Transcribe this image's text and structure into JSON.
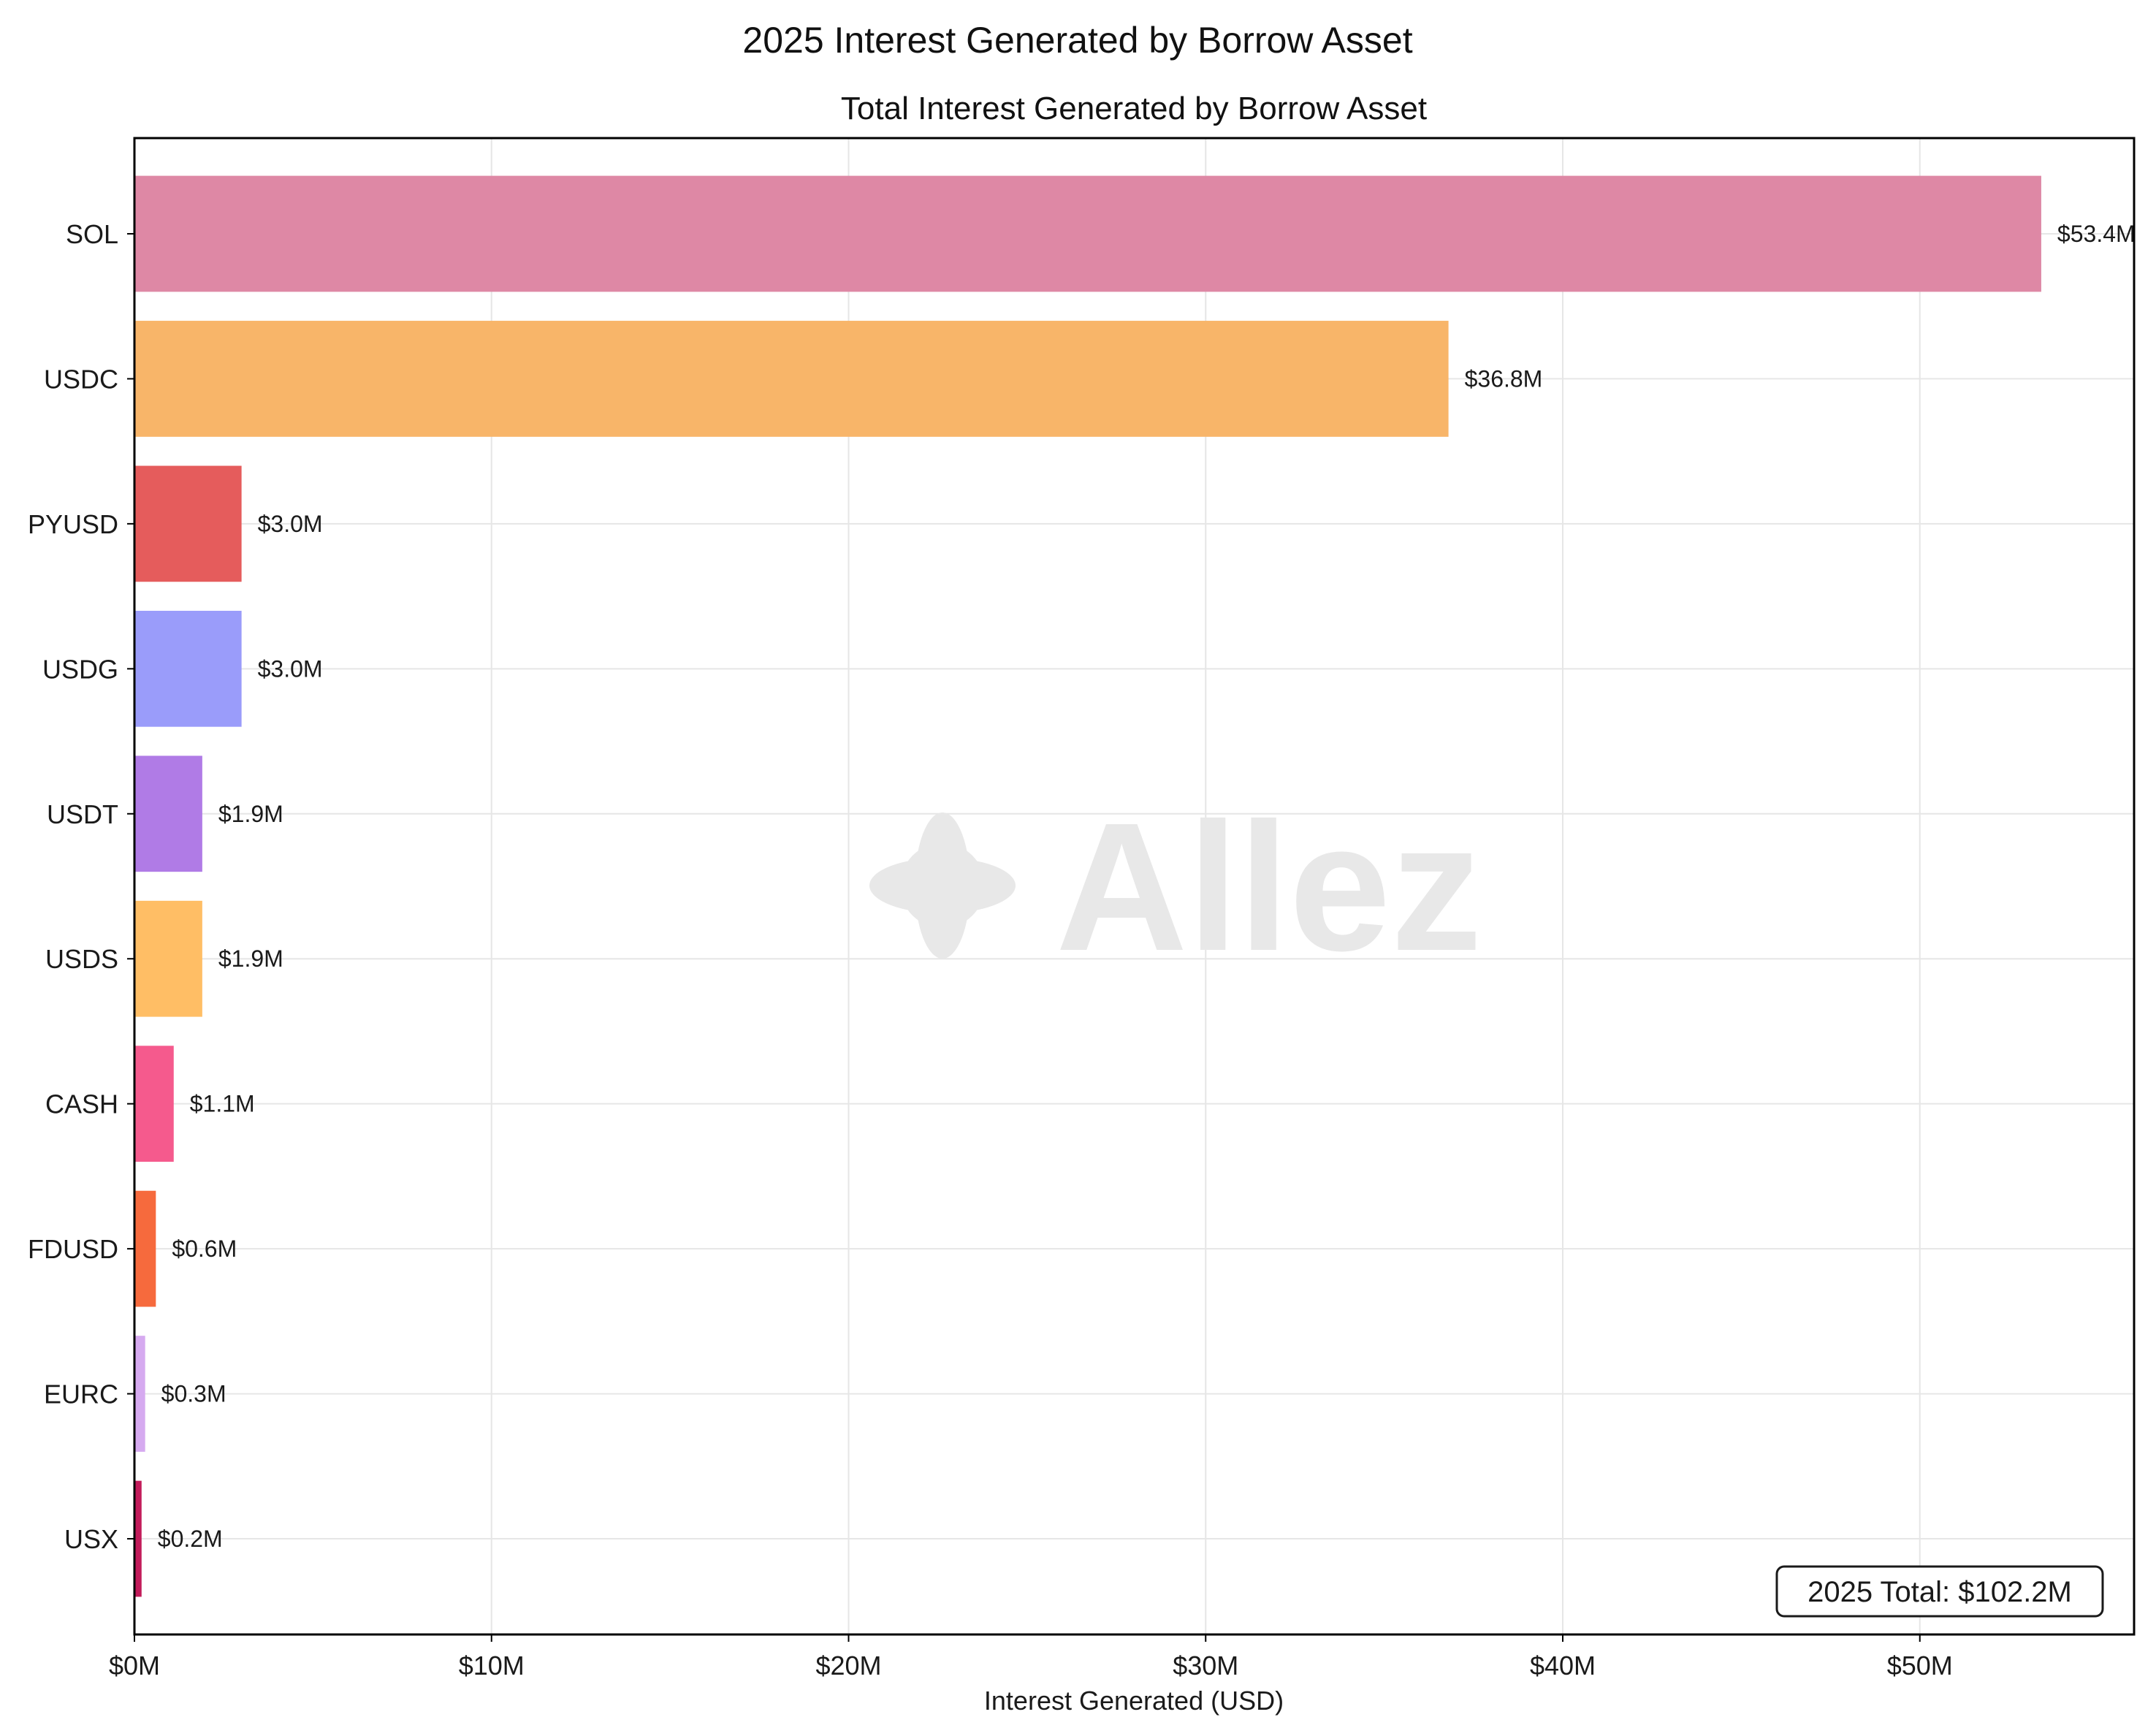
{
  "figure": {
    "suptitle": "2025 Interest Generated by Borrow Asset",
    "watermark": "Allez"
  },
  "chart_data": {
    "type": "bar",
    "orientation": "horizontal",
    "title": "Total Interest Generated by Borrow Asset",
    "xlabel": "Interest Generated (USD)",
    "ylabel": "",
    "xlim": [
      0,
      56
    ],
    "x_unit": "$M",
    "x_ticks": [
      0,
      10,
      20,
      30,
      40,
      50
    ],
    "x_tick_labels": [
      "$0M",
      "$10M",
      "$20M",
      "$30M",
      "$40M",
      "$50M"
    ],
    "grid": true,
    "categories": [
      "SOL",
      "USDC",
      "PYUSD",
      "USDG",
      "USDT",
      "USDS",
      "CASH",
      "FDUSD",
      "EURC",
      "USX"
    ],
    "values": [
      53.4,
      36.8,
      3.0,
      3.0,
      1.9,
      1.9,
      1.1,
      0.6,
      0.3,
      0.2
    ],
    "value_labels": [
      "$53.4M",
      "$36.8M",
      "$3.0M",
      "$3.0M",
      "$1.9M",
      "$1.9M",
      "$1.1M",
      "$0.6M",
      "$0.3M",
      "$0.2M"
    ],
    "colors": [
      "#de88a5",
      "#f8b569",
      "#e55c5c",
      "#9a9cfa",
      "#b07be6",
      "#ffbe65",
      "#f55a8d",
      "#f66a3d",
      "#d6aaf0",
      "#c21b5a"
    ],
    "annotation": "2025 Total: $102.2M"
  }
}
